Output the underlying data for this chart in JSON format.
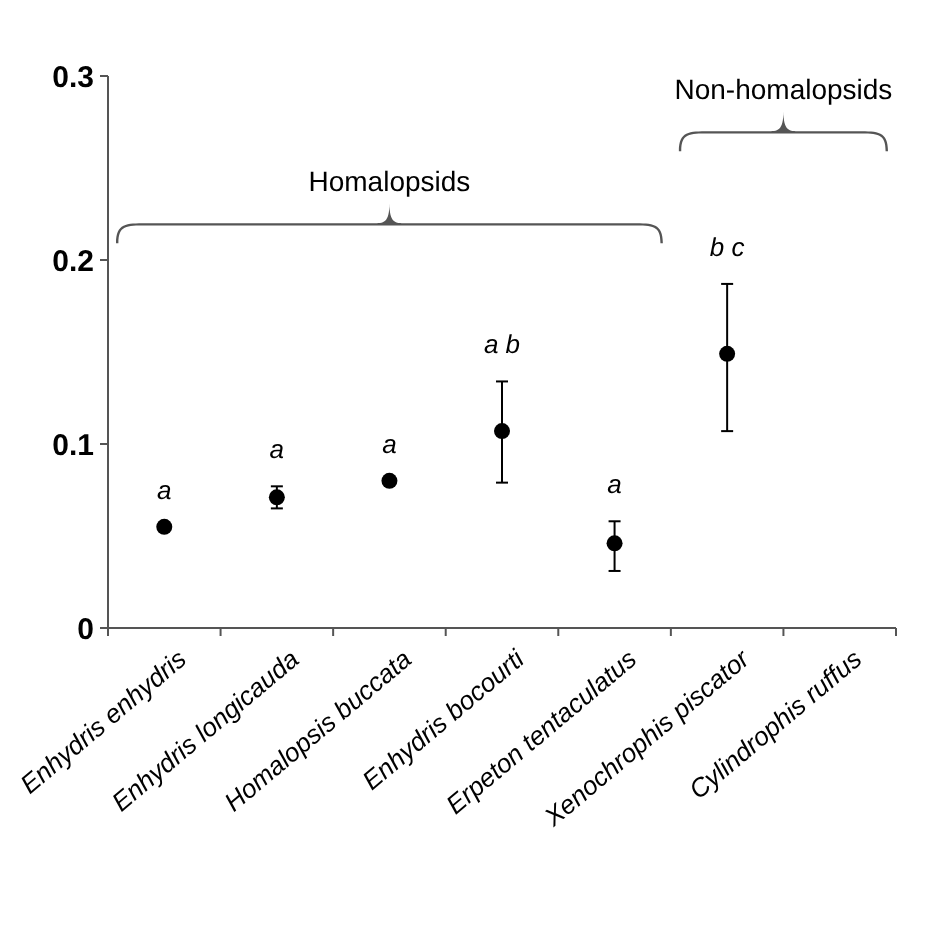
{
  "chart_data": {
    "type": "scatter",
    "categories": [
      "Enhydris enhydris",
      "Enhydris longicauda",
      "Homalopsis buccata",
      "Enhydris bocourti",
      "Erpeton tentaculatus",
      "Xenochrophis piscator",
      "Cylindrophis ruffus"
    ],
    "series": [
      {
        "color": "#000000",
        "values": [
          0.055,
          0.071,
          0.08,
          0.107,
          0.046,
          0.149,
          null
        ],
        "errors": [
          null,
          [
            0.065,
            0.077
          ],
          null,
          [
            0.079,
            0.134
          ],
          [
            0.031,
            0.058
          ],
          [
            0.107,
            0.187
          ],
          null
        ]
      }
    ],
    "ylim": [
      0,
      0.3
    ],
    "yticks": [
      0,
      {
        "value": 0.1,
        "label": "0.1"
      },
      {
        "value": 0.2,
        "label": "0.2"
      },
      {
        "value": 0.3,
        "label": "0.3"
      }
    ],
    "marker": "circle",
    "grid": false,
    "annotations": [
      "a",
      "a",
      "a",
      "a b",
      "a",
      "b c",
      "Homalopsids",
      "Non-homalopsids"
    ]
  }
}
